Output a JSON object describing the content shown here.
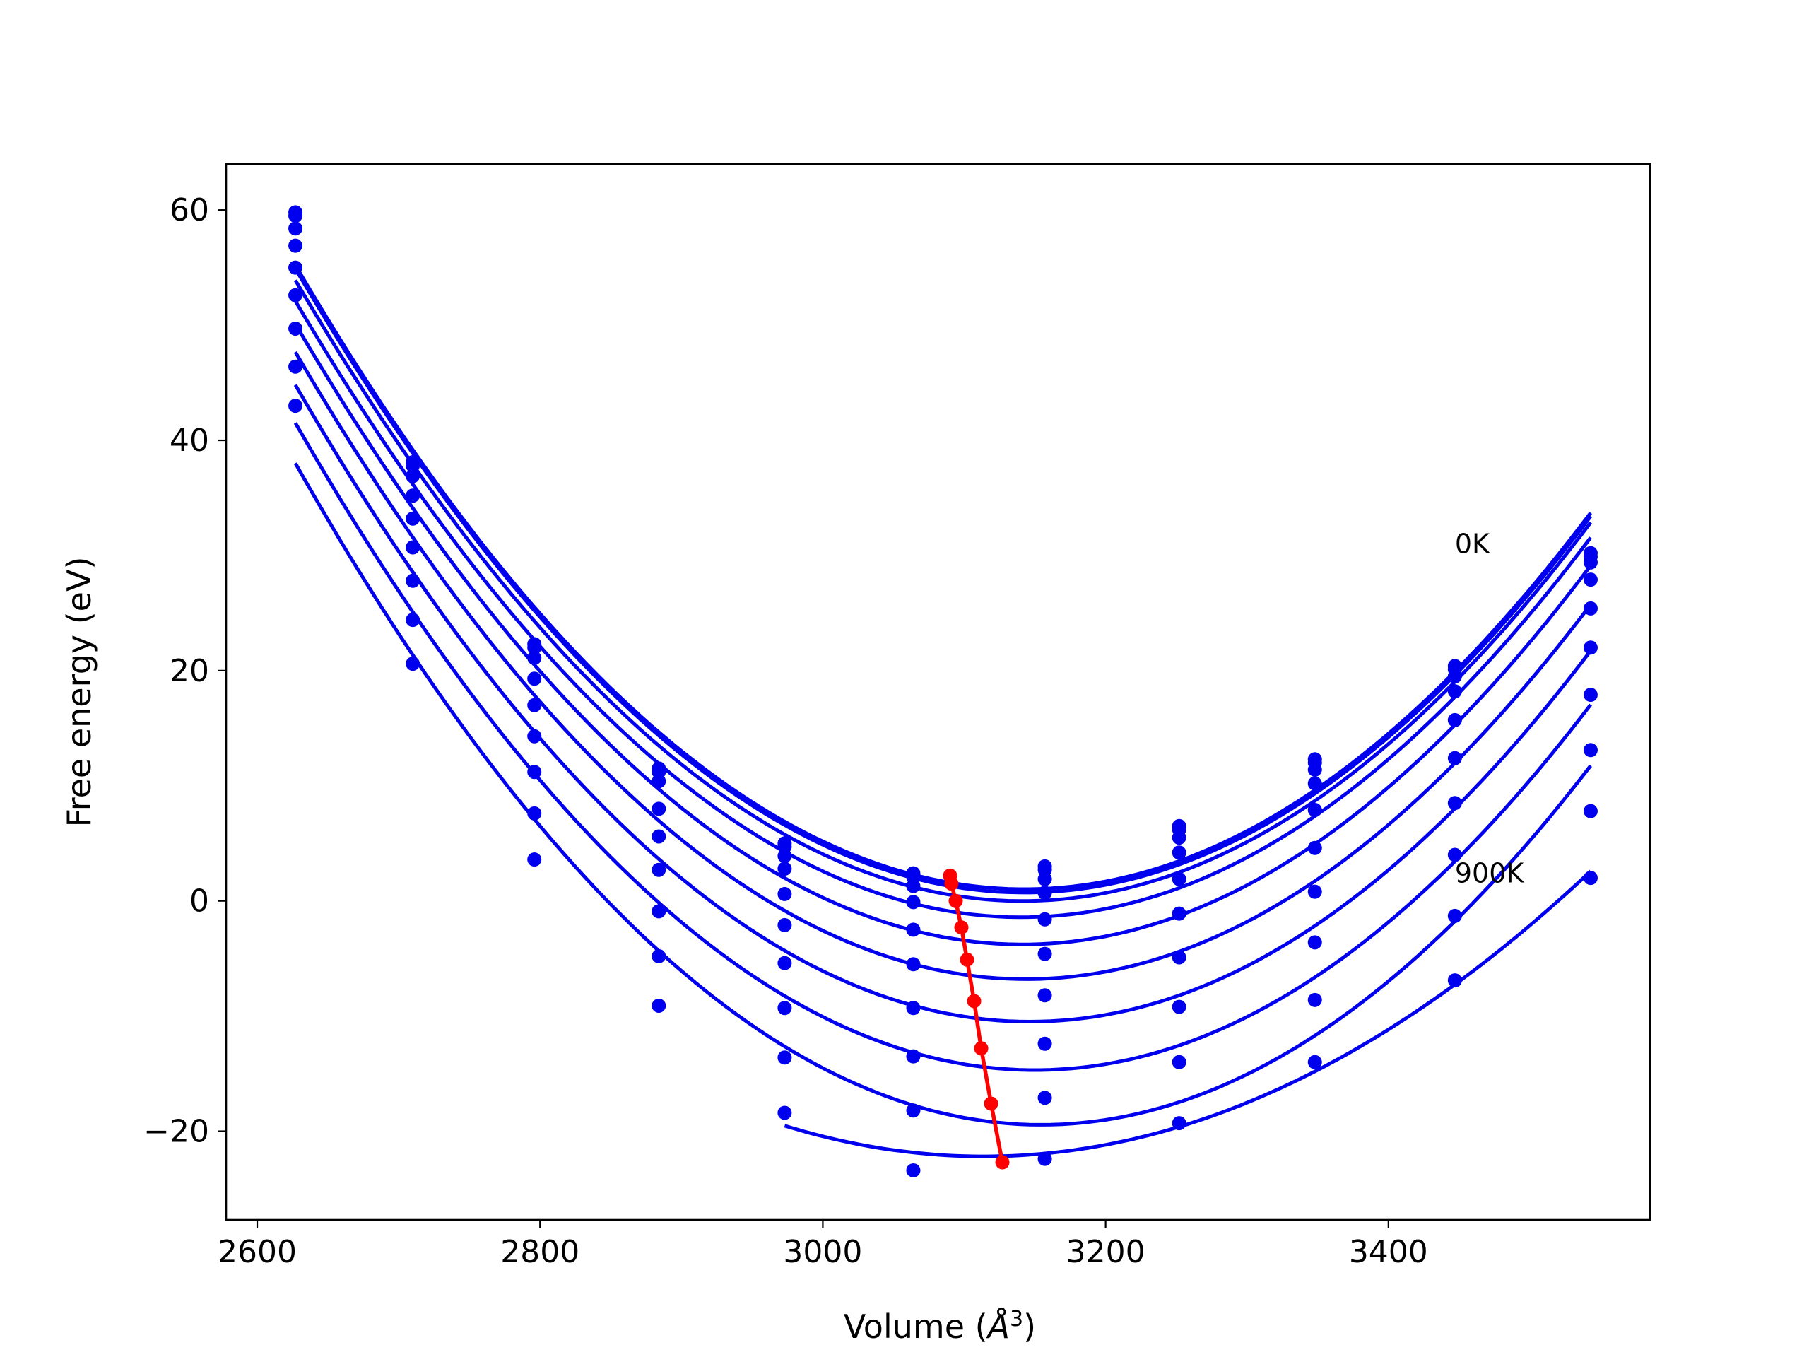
{
  "chart_data": {
    "type": "line",
    "title": "",
    "xlabel": "Volume (",
    "xlabel_unit": "Å",
    "xlabel_exp": "3",
    "xlabel_close": ")",
    "ylabel": "Free energy (eV)",
    "xlim": [
      2578,
      3585
    ],
    "ylim": [
      -27.7,
      64
    ],
    "xticks": [
      2600,
      2800,
      3000,
      3200,
      3400
    ],
    "xtick_labels": [
      "2600",
      "2800",
      "3000",
      "3200",
      "3400"
    ],
    "yticks": [
      -20,
      0,
      20,
      40,
      60
    ],
    "ytick_labels": [
      "−20",
      "0",
      "20",
      "40",
      "60"
    ],
    "grid": false,
    "colors": {
      "series": "#0000ee",
      "minimum": "#ff0000"
    },
    "annotations": [
      {
        "text": "0K",
        "x": 3447,
        "y": 30.2
      },
      {
        "text": "900K",
        "x": 3447,
        "y": 1.6
      }
    ],
    "x": [
      2627,
      2710,
      2796,
      2884,
      2973,
      3064,
      3157,
      3252,
      3348,
      3447,
      3543
    ],
    "series": [
      {
        "values": [
          59.8,
          38.1,
          22.3,
          11.5,
          5.0,
          2.4,
          3.0,
          6.5,
          12.3,
          20.4,
          30.2
        ]
      },
      {
        "values": [
          59.5,
          37.8,
          22.0,
          11.2,
          4.7,
          2.1,
          2.7,
          6.2,
          12.0,
          20.1,
          29.9
        ]
      },
      {
        "values": [
          58.4,
          36.9,
          21.1,
          10.4,
          3.9,
          1.3,
          1.9,
          5.5,
          11.4,
          19.5,
          29.4
        ]
      },
      {
        "values": [
          56.9,
          35.2,
          19.3,
          8.0,
          2.8,
          -0.1,
          0.7,
          4.2,
          10.2,
          18.2,
          27.9
        ]
      },
      {
        "values": [
          55.0,
          33.2,
          17.0,
          5.6,
          0.6,
          -2.5,
          -1.6,
          1.9,
          7.9,
          15.7,
          25.4
        ]
      },
      {
        "values": [
          52.6,
          30.7,
          14.3,
          2.7,
          -2.1,
          -5.5,
          -4.6,
          -1.1,
          4.6,
          12.4,
          22.0
        ]
      },
      {
        "values": [
          49.7,
          27.8,
          11.2,
          -0.9,
          -5.4,
          -9.3,
          -8.2,
          -4.9,
          0.8,
          8.5,
          17.9
        ]
      },
      {
        "values": [
          46.4,
          24.4,
          7.6,
          -4.8,
          -9.3,
          -13.5,
          -12.4,
          -9.2,
          -3.6,
          4.0,
          13.1
        ]
      },
      {
        "values": [
          43.0,
          20.6,
          3.6,
          -9.1,
          -13.6,
          -18.2,
          -17.1,
          -14.0,
          -8.6,
          -1.3,
          7.8
        ]
      },
      {
        "values": [
          null,
          null,
          null,
          null,
          -18.4,
          -23.4,
          -22.4,
          -19.3,
          -14.0,
          -6.9,
          2.0
        ]
      }
    ],
    "minimum_points": {
      "name": "",
      "x": [
        3090,
        3091,
        3094,
        3098,
        3102,
        3107,
        3112,
        3119,
        3127
      ],
      "y": [
        2.2,
        1.5,
        0.0,
        -2.3,
        -5.1,
        -8.7,
        -12.8,
        -17.6,
        -22.7
      ]
    }
  }
}
